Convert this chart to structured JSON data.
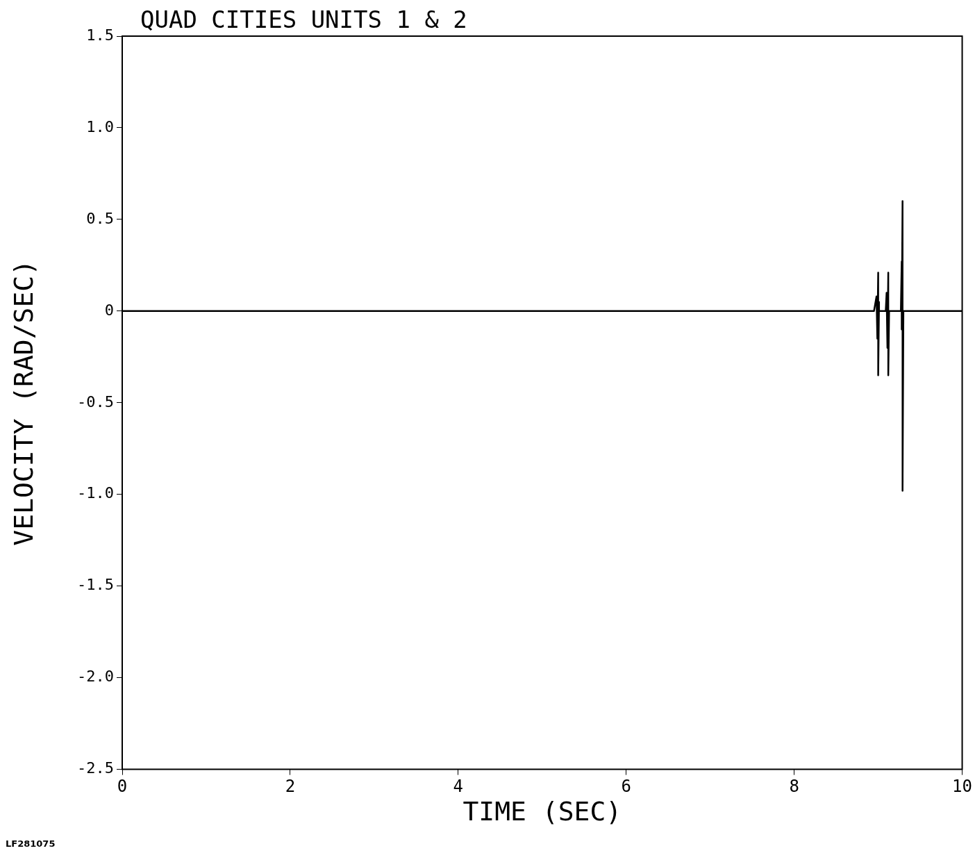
{
  "chart_data": {
    "type": "line",
    "title": "QUAD CITIES UNITS 1 & 2",
    "xlabel": "TIME (SEC)",
    "ylabel": "VELOCITY (RAD/SEC)",
    "annotations": [
      "LF281075"
    ],
    "x": [
      0,
      8.95,
      8.98,
      8.99,
      9.0,
      9.0,
      9.01,
      9.01,
      9.09,
      9.1,
      9.11,
      9.12,
      9.12,
      9.13,
      9.27,
      9.28,
      9.28,
      9.29,
      9.29,
      9.3,
      10
    ],
    "series": [
      {
        "color": "#000000",
        "values": [
          0,
          0,
          0.08,
          -0.15,
          0.21,
          -0.35,
          0.05,
          0,
          0,
          0.1,
          -0.2,
          0.21,
          -0.35,
          0,
          0,
          0.27,
          -0.1,
          0.6,
          -0.98,
          0,
          0
        ]
      }
    ],
    "xlim": [
      0,
      10
    ],
    "xticks": [
      0,
      2,
      4,
      6,
      8,
      10
    ],
    "ylim": [
      -2.5,
      1.5
    ],
    "yticks": [
      -2.5,
      {
        "value": -2,
        "label": "-2.0"
      },
      -1.5,
      {
        "value": -1,
        "label": "-1.0"
      },
      -0.5,
      0,
      0.5,
      {
        "value": 1,
        "label": "1.0"
      },
      1.5
    ],
    "grid": false,
    "legend": false,
    "marker": "none",
    "line_style": "solid"
  }
}
